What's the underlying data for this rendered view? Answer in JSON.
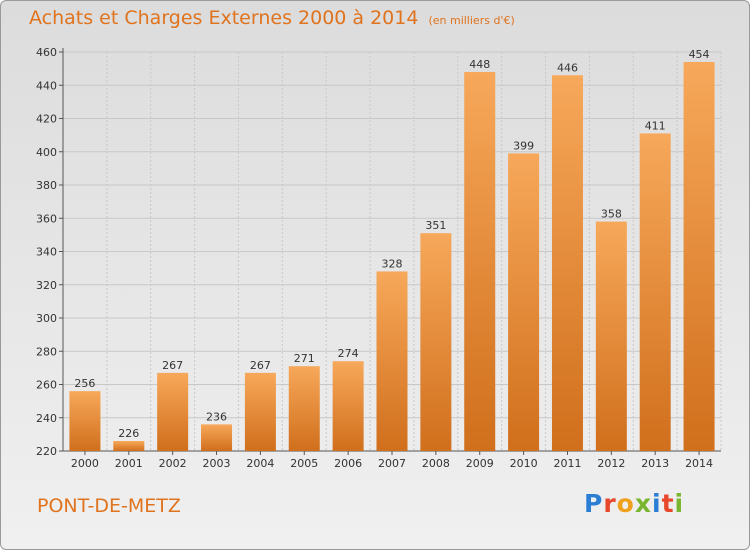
{
  "header": {
    "title": "Achats et Charges Externes 2000 à 2014",
    "unit": "(en milliers d'€)"
  },
  "footer": {
    "city": "PONT-DE-METZ",
    "logo_letters": [
      "P",
      "r",
      "o",
      "x",
      "i",
      "t",
      "i"
    ],
    "logo_colors": [
      "#2a7fd4",
      "#e8472b",
      "#f0a11c",
      "#7ab52f",
      "#2a7fd4",
      "#e8472b",
      "#7ab52f"
    ]
  },
  "colors": {
    "bar_light": "#f7a85a",
    "bar_dark": "#d06f1c",
    "title": "#e0731d",
    "grid": "#c8c8c8"
  },
  "chart_data": {
    "type": "bar",
    "title": "Achats et Charges Externes 2000 à 2014",
    "subtitle": "(en milliers d'€)",
    "categories": [
      "2000",
      "2001",
      "2002",
      "2003",
      "2004",
      "2005",
      "2006",
      "2007",
      "2008",
      "2009",
      "2010",
      "2011",
      "2012",
      "2013",
      "2014"
    ],
    "values": [
      256,
      226,
      267,
      236,
      267,
      271,
      274,
      328,
      351,
      448,
      399,
      446,
      358,
      411,
      454
    ],
    "ylim": [
      220,
      460
    ],
    "yticks": [
      220,
      240,
      260,
      280,
      300,
      320,
      340,
      360,
      380,
      400,
      420,
      440,
      460
    ],
    "xlabel": "",
    "ylabel": "",
    "grid": true,
    "data_labels": true
  }
}
